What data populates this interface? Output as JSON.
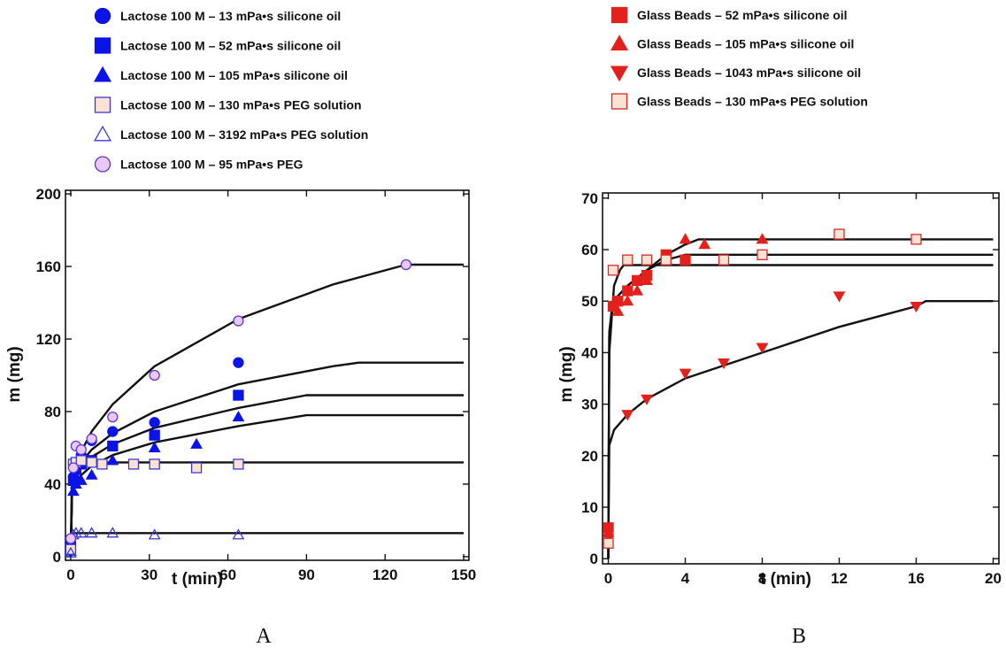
{
  "chart_data": [
    {
      "type": "scatter",
      "panel_label": "A",
      "xlabel": "t (min)",
      "ylabel": "m (mg)",
      "xlim": [
        -2,
        152
      ],
      "ylim": [
        -2,
        202
      ],
      "xticks": [
        0,
        30,
        60,
        90,
        120,
        150
      ],
      "yticks": [
        0,
        40,
        80,
        120,
        160,
        200
      ],
      "legend_placement": "above",
      "series": [
        {
          "name": "Lactose 100 M – 13 mPa•s silicone oil",
          "marker": "circle",
          "fill": "#0a14e6",
          "stroke": "#0a14e6",
          "x": [
            0,
            1,
            2,
            4,
            8,
            16,
            32,
            64
          ],
          "y": [
            8,
            44,
            52,
            56,
            64,
            69,
            74,
            107
          ]
        },
        {
          "name": "Lactose 100 M – 52 mPa•s silicone oil",
          "marker": "square",
          "fill": "#0a14e6",
          "stroke": "#0a14e6",
          "x": [
            0,
            1,
            2,
            4,
            8,
            16,
            32,
            64
          ],
          "y": [
            5,
            42,
            48,
            51,
            53,
            61,
            67,
            89
          ]
        },
        {
          "name": "Lactose 100 M – 105 mPa•s silicone oil",
          "marker": "triangle-up",
          "fill": "#0a14e6",
          "stroke": "#0a14e6",
          "x": [
            0,
            1,
            2,
            4,
            8,
            16,
            32,
            48,
            64
          ],
          "y": [
            3,
            36,
            40,
            42,
            45,
            53,
            60,
            62,
            77
          ]
        },
        {
          "name": "Lactose 100 M – 130 mPa•s PEG solution",
          "marker": "square",
          "fill": "#fbe3d3",
          "stroke": "#3a3ad0",
          "x": [
            0,
            1,
            2,
            4,
            8,
            12,
            24,
            32,
            48,
            64
          ],
          "y": [
            4,
            51,
            52,
            53,
            52,
            51,
            51,
            51,
            49,
            51
          ]
        },
        {
          "name": "Lactose 100 M – 3192 mPa•s PEG solution",
          "marker": "triangle-up-open",
          "fill": "none",
          "stroke": "#3a3ad0",
          "x": [
            0,
            1,
            2,
            4,
            8,
            16,
            32,
            64
          ],
          "y": [
            2,
            12,
            13,
            13,
            13,
            13,
            12,
            12
          ]
        },
        {
          "name": "Lactose 100 M – 95 mPa•s PEG",
          "marker": "circle",
          "fill": "#e9c8f5",
          "stroke": "#5a3ad0",
          "x": [
            0,
            1,
            2,
            4,
            8,
            16,
            32,
            64,
            128
          ],
          "y": [
            10,
            49,
            61,
            59,
            65,
            77,
            100,
            130,
            161
          ]
        }
      ],
      "fits": [
        {
          "x": [
            0,
            0.5,
            1,
            2,
            4,
            8,
            16,
            32,
            64,
            100,
            128,
            150
          ],
          "y": [
            0,
            36,
            42,
            50,
            58,
            69,
            84,
            105,
            131,
            150,
            161,
            161
          ]
        },
        {
          "x": [
            0,
            0.5,
            1,
            2,
            4,
            8,
            16,
            32,
            64,
            100,
            110,
            150
          ],
          "y": [
            0,
            35,
            40,
            46,
            52,
            59,
            68,
            80,
            95,
            105,
            107,
            107
          ]
        },
        {
          "x": [
            0,
            0.5,
            1,
            2,
            4,
            8,
            16,
            32,
            64,
            90,
            150
          ],
          "y": [
            0,
            35,
            39,
            44,
            49,
            55,
            62,
            71,
            82,
            89,
            89
          ]
        },
        {
          "x": [
            0,
            0.5,
            1,
            2,
            4,
            8,
            16,
            32,
            64,
            90,
            150
          ],
          "y": [
            0,
            34,
            37,
            41,
            45,
            50,
            56,
            63,
            72,
            78,
            78
          ]
        },
        {
          "x": [
            0,
            0.4,
            1,
            2,
            4,
            8,
            12,
            150
          ],
          "y": [
            0,
            38,
            45,
            49,
            51,
            52,
            52,
            52
          ]
        },
        {
          "x": [
            0,
            0.4,
            1,
            2,
            150
          ],
          "y": [
            0,
            12,
            13,
            13,
            13
          ]
        }
      ]
    },
    {
      "type": "scatter",
      "panel_label": "B",
      "xlabel": "t (min)",
      "ylabel": "m (mg)",
      "xlim": [
        -0.3,
        20.3
      ],
      "ylim": [
        -1,
        71
      ],
      "xticks": [
        0,
        4,
        8,
        12,
        16,
        20
      ],
      "yticks": [
        0,
        10,
        20,
        30,
        40,
        50,
        60,
        70
      ],
      "legend_placement": "above",
      "series": [
        {
          "name": "Glass Beads – 52 mPa•s silicone oil",
          "marker": "square",
          "fill": "#e3201b",
          "stroke": "#e3201b",
          "x": [
            0,
            0.25,
            0.5,
            1,
            1.5,
            2,
            3,
            4
          ],
          "y": [
            6,
            49,
            50,
            52,
            54,
            55,
            59,
            58
          ]
        },
        {
          "name": "Glass Beads – 105 mPa•s silicone oil",
          "marker": "triangle-up",
          "fill": "#e3201b",
          "stroke": "#e3201b",
          "x": [
            0,
            0.5,
            1,
            1.5,
            2,
            3,
            4,
            5,
            8
          ],
          "y": [
            5,
            48,
            50,
            52,
            54,
            58,
            62,
            61,
            62
          ]
        },
        {
          "name": "Glass Beads – 1043 mPa•s silicone oil",
          "marker": "triangle-down",
          "fill": "#e3201b",
          "stroke": "#e3201b",
          "x": [
            0,
            1,
            2,
            4,
            6,
            8,
            12,
            16
          ],
          "y": [
            4,
            28,
            31,
            36,
            38,
            41,
            51,
            49
          ]
        },
        {
          "name": "Glass Beads – 130 mPa•s PEG solution",
          "marker": "square",
          "fill": "#fbe3d3",
          "stroke": "#d82a2a",
          "x": [
            0,
            0.25,
            1,
            2,
            3,
            6,
            8,
            12,
            16
          ],
          "y": [
            3,
            56,
            58,
            58,
            58,
            58,
            59,
            63,
            62
          ]
        }
      ],
      "fits": [
        {
          "x": [
            0,
            0.05,
            0.2,
            0.5,
            1,
            2,
            3,
            4,
            4.7,
            20
          ],
          "y": [
            0,
            43,
            48,
            51,
            53,
            56,
            59,
            61,
            62,
            62
          ]
        },
        {
          "x": [
            0,
            0.05,
            0.2,
            0.5,
            1,
            2,
            3,
            4,
            20
          ],
          "y": [
            0,
            44,
            49,
            51,
            53,
            56,
            58,
            59,
            59
          ]
        },
        {
          "x": [
            0,
            0.05,
            0.3,
            0.6,
            0.8,
            20
          ],
          "y": [
            0,
            40,
            53,
            56,
            57,
            57
          ]
        },
        {
          "x": [
            0,
            0.05,
            0.3,
            1,
            2,
            4,
            8,
            12,
            16,
            16.5,
            20
          ],
          "y": [
            0,
            22,
            25,
            28,
            31,
            35,
            40,
            45,
            49,
            50,
            50
          ]
        }
      ]
    }
  ]
}
